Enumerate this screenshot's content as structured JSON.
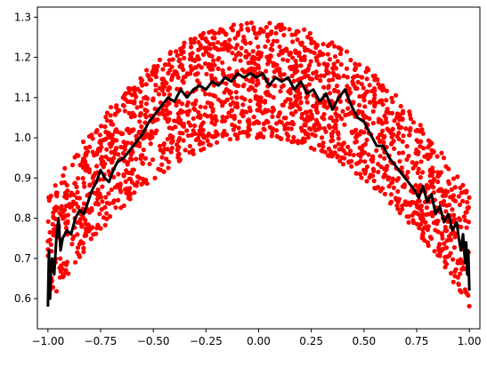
{
  "chart_data": {
    "type": "scatter",
    "title": "",
    "xlabel": "",
    "ylabel": "",
    "xlim": [
      -1.05,
      1.05
    ],
    "ylim": [
      0.525,
      1.325
    ],
    "grid": false,
    "legend": "none",
    "x_ticks": [
      "−1.00",
      "−0.75",
      "−0.50",
      "−0.25",
      "0.00",
      "0.25",
      "0.50",
      "0.75",
      "1.00"
    ],
    "x_tick_values": [
      -1.0,
      -0.75,
      -0.5,
      -0.25,
      0.0,
      0.25,
      0.5,
      0.75,
      1.0
    ],
    "y_ticks": [
      "0.6",
      "0.7",
      "0.8",
      "0.9",
      "1.0",
      "1.1",
      "1.2",
      "1.3"
    ],
    "y_tick_values": [
      0.6,
      0.7,
      0.8,
      0.9,
      1.0,
      1.1,
      1.2,
      1.3
    ],
    "scatter_series": {
      "color": "#ff0000",
      "point_count": 2000,
      "distribution": {
        "x_range": [
          -1.0,
          1.0
        ],
        "lower_bound": "0.7*(1-x^2)^0.5*... approx: y_low(x) = 0.58 + 0.42*(1 - x^2)",
        "upper_bound": "y_high(x) = 0.86 + 0.43*(1 - x^2)"
      }
    },
    "line_series": {
      "color": "#000000",
      "points": [
        [
          -1.0,
          0.58
        ],
        [
          -0.995,
          0.72
        ],
        [
          -0.99,
          0.6
        ],
        [
          -0.985,
          0.68
        ],
        [
          -0.98,
          0.7
        ],
        [
          -0.97,
          0.66
        ],
        [
          -0.96,
          0.75
        ],
        [
          -0.95,
          0.8
        ],
        [
          -0.94,
          0.72
        ],
        [
          -0.93,
          0.75
        ],
        [
          -0.91,
          0.77
        ],
        [
          -0.89,
          0.76
        ],
        [
          -0.87,
          0.8
        ],
        [
          -0.85,
          0.82
        ],
        [
          -0.83,
          0.81
        ],
        [
          -0.81,
          0.84
        ],
        [
          -0.79,
          0.87
        ],
        [
          -0.77,
          0.89
        ],
        [
          -0.75,
          0.92
        ],
        [
          -0.73,
          0.9
        ],
        [
          -0.71,
          0.89
        ],
        [
          -0.69,
          0.92
        ],
        [
          -0.67,
          0.94
        ],
        [
          -0.64,
          0.95
        ],
        [
          -0.61,
          0.97
        ],
        [
          -0.58,
          0.99
        ],
        [
          -0.55,
          1.01
        ],
        [
          -0.52,
          1.04
        ],
        [
          -0.49,
          1.06
        ],
        [
          -0.46,
          1.08
        ],
        [
          -0.43,
          1.1
        ],
        [
          -0.4,
          1.09
        ],
        [
          -0.37,
          1.12
        ],
        [
          -0.34,
          1.1
        ],
        [
          -0.31,
          1.12
        ],
        [
          -0.28,
          1.13
        ],
        [
          -0.25,
          1.12
        ],
        [
          -0.22,
          1.14
        ],
        [
          -0.19,
          1.13
        ],
        [
          -0.16,
          1.15
        ],
        [
          -0.13,
          1.14
        ],
        [
          -0.1,
          1.16
        ],
        [
          -0.07,
          1.15
        ],
        [
          -0.04,
          1.16
        ],
        [
          -0.01,
          1.15
        ],
        [
          0.02,
          1.16
        ],
        [
          0.05,
          1.13
        ],
        [
          0.08,
          1.15
        ],
        [
          0.11,
          1.14
        ],
        [
          0.14,
          1.15
        ],
        [
          0.17,
          1.12
        ],
        [
          0.2,
          1.14
        ],
        [
          0.23,
          1.11
        ],
        [
          0.26,
          1.12
        ],
        [
          0.29,
          1.09
        ],
        [
          0.32,
          1.11
        ],
        [
          0.35,
          1.07
        ],
        [
          0.38,
          1.1
        ],
        [
          0.41,
          1.12
        ],
        [
          0.44,
          1.08
        ],
        [
          0.47,
          1.05
        ],
        [
          0.5,
          1.04
        ],
        [
          0.53,
          1.01
        ],
        [
          0.56,
          0.98
        ],
        [
          0.59,
          0.98
        ],
        [
          0.62,
          0.95
        ],
        [
          0.65,
          0.93
        ],
        [
          0.68,
          0.91
        ],
        [
          0.71,
          0.89
        ],
        [
          0.74,
          0.87
        ],
        [
          0.76,
          0.85
        ],
        [
          0.78,
          0.88
        ],
        [
          0.8,
          0.84
        ],
        [
          0.82,
          0.86
        ],
        [
          0.84,
          0.81
        ],
        [
          0.86,
          0.83
        ],
        [
          0.88,
          0.79
        ],
        [
          0.9,
          0.81
        ],
        [
          0.92,
          0.77
        ],
        [
          0.94,
          0.79
        ],
        [
          0.95,
          0.75
        ],
        [
          0.96,
          0.72
        ],
        [
          0.97,
          0.76
        ],
        [
          0.98,
          0.69
        ],
        [
          0.985,
          0.74
        ],
        [
          0.99,
          0.66
        ],
        [
          0.995,
          0.72
        ],
        [
          1.0,
          0.62
        ]
      ]
    }
  }
}
